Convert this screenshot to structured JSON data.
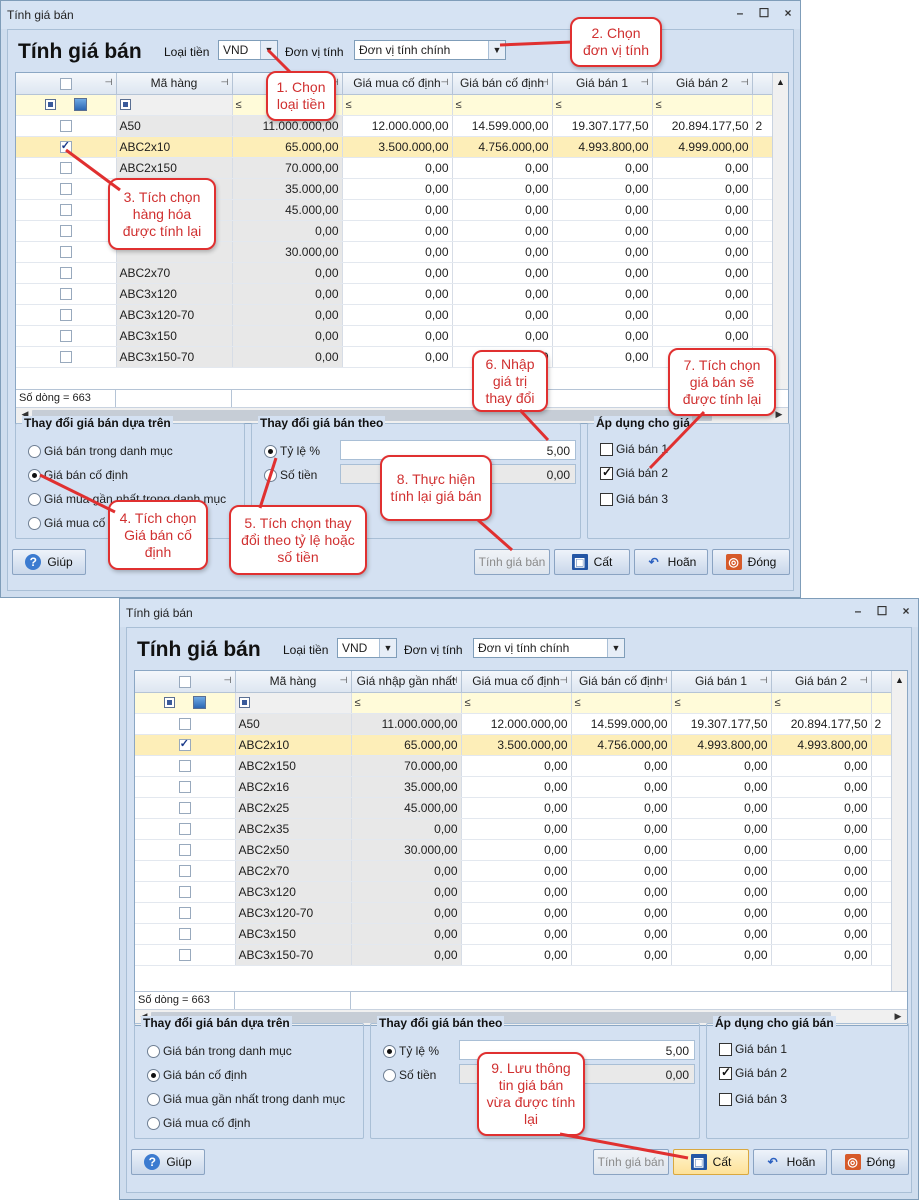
{
  "window1": {
    "title": "Tính giá bán",
    "heading": "Tính giá bán",
    "currency_label": "Loại tiền",
    "currency_value": "VND",
    "unit_label": "Đơn vị tính",
    "unit_value": "Đơn vị tính chính",
    "columns": [
      "Mã hàng",
      "Giá nh",
      "Giá mua cố định",
      "Giá bán cố định",
      "Giá bán 1",
      "Giá bán 2"
    ],
    "filter_op": "≤",
    "rows": [
      {
        "code": "A50",
        "c1": "11.000.000,00",
        "c2": "12.000.000,00",
        "c3": "14.599.000,00",
        "c4": "19.307.177,50",
        "c5": "20.894.177,50",
        "c6": "2",
        "checked": false
      },
      {
        "code": "ABC2x10",
        "c1": "65.000,00",
        "c2": "3.500.000,00",
        "c3": "4.756.000,00",
        "c4": "4.993.800,00",
        "c5": "4.999.000,00",
        "c6": "",
        "checked": true
      },
      {
        "code": "ABC2x150",
        "c1": "70.000,00",
        "c2": "0,00",
        "c3": "0,00",
        "c4": "0,00",
        "c5": "0,00",
        "c6": "",
        "checked": false
      },
      {
        "code": "",
        "c1": "35.000,00",
        "c2": "0,00",
        "c3": "0,00",
        "c4": "0,00",
        "c5": "0,00",
        "c6": "",
        "checked": false
      },
      {
        "code": "",
        "c1": "45.000,00",
        "c2": "0,00",
        "c3": "0,00",
        "c4": "0,00",
        "c5": "0,00",
        "c6": "",
        "checked": false
      },
      {
        "code": "",
        "c1": "0,00",
        "c2": "0,00",
        "c3": "0,00",
        "c4": "0,00",
        "c5": "0,00",
        "c6": "",
        "checked": false
      },
      {
        "code": "",
        "c1": "30.000,00",
        "c2": "0,00",
        "c3": "0,00",
        "c4": "0,00",
        "c5": "0,00",
        "c6": "",
        "checked": false
      },
      {
        "code": "ABC2x70",
        "c1": "0,00",
        "c2": "0,00",
        "c3": "0,00",
        "c4": "0,00",
        "c5": "0,00",
        "c6": "",
        "checked": false
      },
      {
        "code": "ABC3x120",
        "c1": "0,00",
        "c2": "0,00",
        "c3": "0,00",
        "c4": "0,00",
        "c5": "0,00",
        "c6": "",
        "checked": false
      },
      {
        "code": "ABC3x120-70",
        "c1": "0,00",
        "c2": "0,00",
        "c3": "0,00",
        "c4": "0,00",
        "c5": "0,00",
        "c6": "",
        "checked": false
      },
      {
        "code": "ABC3x150",
        "c1": "0,00",
        "c2": "0,00",
        "c3": "0,00",
        "c4": "0,00",
        "c5": "0,00",
        "c6": "",
        "checked": false
      },
      {
        "code": "ABC3x150-70",
        "c1": "0,00",
        "c2": "0,00",
        "c3": "0,00",
        "c4": "0,00",
        "c5": "0,00",
        "c6": "",
        "checked": false
      }
    ],
    "row_count": "Số dòng = 663",
    "group1_title": "Thay đổi giá bán dựa trên",
    "group1_options": [
      "Giá bán trong danh mục",
      "Giá bán cố định",
      "Giá mua gần nhất trong danh mục",
      "Giá mua cố"
    ],
    "group2_title": "Thay đổi giá bán theo",
    "percent_label": "Tỷ lệ %",
    "percent_value": "5,00",
    "amount_label": "Số tiền",
    "amount_value": "0,00",
    "group3_title": "Áp dụng cho giá",
    "apply_options": [
      "Giá bán 1",
      "Giá bán 2",
      "Giá bán 3"
    ],
    "btn_help": "Giúp",
    "btn_calc": "Tính giá bán",
    "btn_save": "Cất",
    "btn_undo": "Hoãn",
    "btn_close": "Đóng"
  },
  "window2": {
    "title": "Tính giá bán",
    "heading": "Tính giá bán",
    "currency_label": "Loại tiền",
    "currency_value": "VND",
    "unit_label": "Đơn vị tính",
    "unit_value": "Đơn vị tính chính",
    "columns": [
      "Mã hàng",
      "Giá nhập gần nhất",
      "Giá mua cố định",
      "Giá bán cố định",
      "Giá bán 1",
      "Giá bán 2"
    ],
    "filter_op": "≤",
    "rows": [
      {
        "code": "A50",
        "c1": "11.000.000,00",
        "c2": "12.000.000,00",
        "c3": "14.599.000,00",
        "c4": "19.307.177,50",
        "c5": "20.894.177,50",
        "c6": "2",
        "checked": false
      },
      {
        "code": "ABC2x10",
        "c1": "65.000,00",
        "c2": "3.500.000,00",
        "c3": "4.756.000,00",
        "c4": "4.993.800,00",
        "c5": "4.993.800,00",
        "c6": "",
        "checked": true
      },
      {
        "code": "ABC2x150",
        "c1": "70.000,00",
        "c2": "0,00",
        "c3": "0,00",
        "c4": "0,00",
        "c5": "0,00",
        "c6": "",
        "checked": false
      },
      {
        "code": "ABC2x16",
        "c1": "35.000,00",
        "c2": "0,00",
        "c3": "0,00",
        "c4": "0,00",
        "c5": "0,00",
        "c6": "",
        "checked": false
      },
      {
        "code": "ABC2x25",
        "c1": "45.000,00",
        "c2": "0,00",
        "c3": "0,00",
        "c4": "0,00",
        "c5": "0,00",
        "c6": "",
        "checked": false
      },
      {
        "code": "ABC2x35",
        "c1": "0,00",
        "c2": "0,00",
        "c3": "0,00",
        "c4": "0,00",
        "c5": "0,00",
        "c6": "",
        "checked": false
      },
      {
        "code": "ABC2x50",
        "c1": "30.000,00",
        "c2": "0,00",
        "c3": "0,00",
        "c4": "0,00",
        "c5": "0,00",
        "c6": "",
        "checked": false
      },
      {
        "code": "ABC2x70",
        "c1": "0,00",
        "c2": "0,00",
        "c3": "0,00",
        "c4": "0,00",
        "c5": "0,00",
        "c6": "",
        "checked": false
      },
      {
        "code": "ABC3x120",
        "c1": "0,00",
        "c2": "0,00",
        "c3": "0,00",
        "c4": "0,00",
        "c5": "0,00",
        "c6": "",
        "checked": false
      },
      {
        "code": "ABC3x120-70",
        "c1": "0,00",
        "c2": "0,00",
        "c3": "0,00",
        "c4": "0,00",
        "c5": "0,00",
        "c6": "",
        "checked": false
      },
      {
        "code": "ABC3x150",
        "c1": "0,00",
        "c2": "0,00",
        "c3": "0,00",
        "c4": "0,00",
        "c5": "0,00",
        "c6": "",
        "checked": false
      },
      {
        "code": "ABC3x150-70",
        "c1": "0,00",
        "c2": "0,00",
        "c3": "0,00",
        "c4": "0,00",
        "c5": "0,00",
        "c6": "",
        "checked": false
      }
    ],
    "row_count": "Số dòng = 663",
    "group1_title": "Thay đổi giá bán dựa trên",
    "group1_options": [
      "Giá bán trong danh mục",
      "Giá bán cố định",
      "Giá mua gần nhất trong danh mục",
      "Giá mua cố định"
    ],
    "group2_title": "Thay đổi giá bán theo",
    "percent_label": "Tỷ lệ %",
    "percent_value": "5,00",
    "amount_label": "Số tiền",
    "amount_value": "0,00",
    "group3_title": "Áp dụng cho giá bán",
    "apply_options": [
      "Giá bán 1",
      "Giá bán 2",
      "Giá bán 3"
    ],
    "btn_help": "Giúp",
    "btn_calc": "Tính giá bán",
    "btn_save": "Cất",
    "btn_undo": "Hoãn",
    "btn_close": "Đóng"
  },
  "callouts": {
    "c1": "1. Chọn loại tiền",
    "c2": "2. Chọn đơn vị tính",
    "c3": "3. Tích chọn hàng hóa được tính lại",
    "c4": "4. Tích chọn Giá bán cố định",
    "c5": "5. Tích chọn thay đổi theo tỷ lệ hoặc số tiền",
    "c6": "6. Nhập giá trị thay đổi",
    "c7": "7. Tích chọn giá bán sẽ được tính lại",
    "c8": "8. Thực hiện tính lại giá bán",
    "c9": "9. Lưu thông tin giá bán vừa được tính lại"
  },
  "colors": {
    "callout_border": "#e03030",
    "selected_row": "#fdeeb8",
    "window_bg": "#d4e1f2"
  }
}
